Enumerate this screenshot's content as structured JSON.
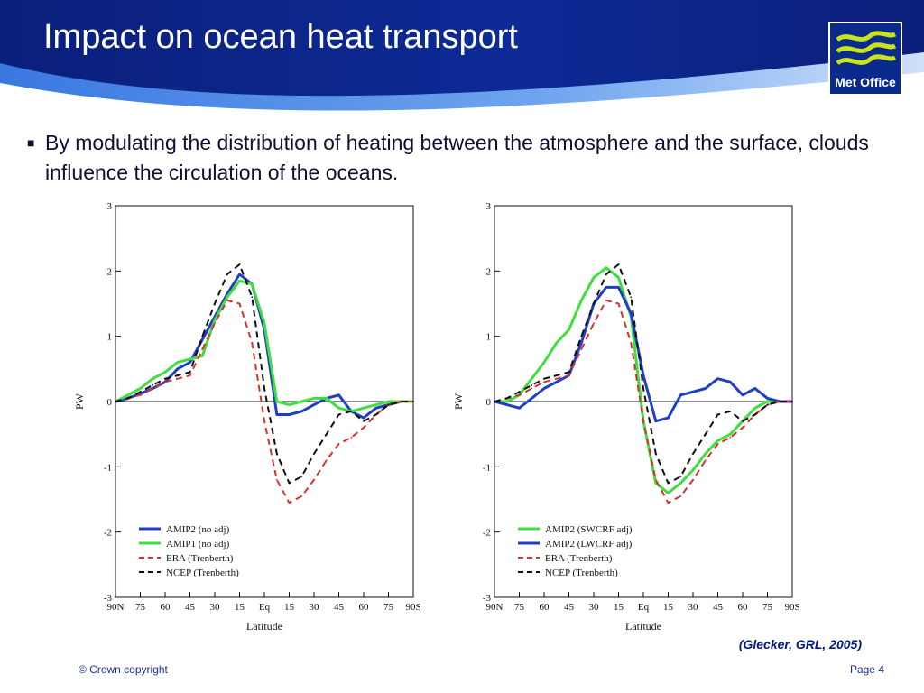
{
  "slide": {
    "title": "Impact on ocean heat transport",
    "bullet": "By modulating the distribution of heating between the atmosphere and the surface, clouds influence the circulation of the oceans.",
    "citation": "(Glecker, GRL, 2005)",
    "footer_left": "© Crown copyright",
    "footer_right": "Page 4",
    "logo_text": "Met Office",
    "colors": {
      "header_dark": "#0a1f7a",
      "header_light": "#2d6fd6",
      "text": "#0d1030",
      "footer": "#1b2f9a"
    },
    "icons": [
      "bullet-square-icon",
      "met-office-waves-icon"
    ]
  },
  "chart_data": [
    {
      "type": "line",
      "xlabel": "Latitude",
      "ylabel": "PW",
      "ylim": [
        -3,
        3
      ],
      "yticks": [
        "3",
        "2",
        "1",
        "0",
        "-1",
        "-2",
        "-3"
      ],
      "xticks": [
        "90N",
        "75",
        "60",
        "45",
        "30",
        "15",
        "Eq",
        "15",
        "30",
        "45",
        "60",
        "75",
        "90S"
      ],
      "x": [
        90,
        82.5,
        75,
        67.5,
        60,
        52.5,
        45,
        37.5,
        30,
        22.5,
        15,
        7.5,
        0,
        -7.5,
        -15,
        -22.5,
        -30,
        -37.5,
        -45,
        -52.5,
        -60,
        -67.5,
        -75,
        -82.5,
        -90
      ],
      "legend_position": "bottom-left",
      "series": [
        {
          "name": "AMIP2 (no adj)",
          "color": "#1f3fc4",
          "style": "solid",
          "values": [
            0,
            0.05,
            0.12,
            0.2,
            0.3,
            0.5,
            0.6,
            0.95,
            1.3,
            1.65,
            1.95,
            1.8,
            1.1,
            -0.2,
            -0.2,
            -0.15,
            -0.05,
            0.05,
            0.1,
            -0.15,
            -0.25,
            -0.1,
            -0.05,
            0,
            0
          ]
        },
        {
          "name": "AMIP1 (no adj)",
          "color": "#3fdf3f",
          "style": "solid",
          "values": [
            0,
            0.1,
            0.2,
            0.35,
            0.45,
            0.6,
            0.65,
            0.7,
            1.25,
            1.6,
            1.85,
            1.8,
            1.2,
            0,
            -0.05,
            0,
            0.05,
            0.05,
            -0.1,
            -0.15,
            -0.1,
            -0.05,
            0,
            0,
            0
          ]
        },
        {
          "name": "ERA (Trenberth)",
          "color": "#d83030",
          "style": "dashed",
          "values": [
            0,
            0.05,
            0.1,
            0.2,
            0.3,
            0.35,
            0.4,
            0.8,
            1.2,
            1.55,
            1.5,
            0.9,
            -0.3,
            -1.2,
            -1.55,
            -1.45,
            -1.2,
            -0.9,
            -0.65,
            -0.55,
            -0.4,
            -0.2,
            -0.05,
            0,
            0
          ]
        },
        {
          "name": "NCEP (Trenberth)",
          "color": "#111111",
          "style": "dashed",
          "values": [
            0,
            0.05,
            0.15,
            0.25,
            0.35,
            0.4,
            0.45,
            1.0,
            1.5,
            1.95,
            2.1,
            1.6,
            0.2,
            -0.8,
            -1.25,
            -1.15,
            -0.8,
            -0.5,
            -0.2,
            -0.15,
            -0.3,
            -0.2,
            -0.05,
            0,
            0
          ]
        }
      ]
    },
    {
      "type": "line",
      "xlabel": "Latitude",
      "ylabel": "PW",
      "ylim": [
        -3,
        3
      ],
      "yticks": [
        "3",
        "2",
        "1",
        "0",
        "-1",
        "-2",
        "-3"
      ],
      "xticks": [
        "90N",
        "75",
        "60",
        "45",
        "30",
        "15",
        "Eq",
        "15",
        "30",
        "45",
        "60",
        "75",
        "90S"
      ],
      "x": [
        90,
        82.5,
        75,
        67.5,
        60,
        52.5,
        45,
        37.5,
        30,
        22.5,
        15,
        7.5,
        0,
        -7.5,
        -15,
        -22.5,
        -30,
        -37.5,
        -45,
        -52.5,
        -60,
        -67.5,
        -75,
        -82.5,
        -90
      ],
      "legend_position": "bottom-left",
      "series": [
        {
          "name": "AMIP2 (SWCRF adj)",
          "color": "#3fdf3f",
          "style": "solid",
          "values": [
            0,
            0,
            0.1,
            0.35,
            0.6,
            0.9,
            1.1,
            1.55,
            1.9,
            2.05,
            1.9,
            1.3,
            -0.3,
            -1.25,
            -1.4,
            -1.25,
            -1.05,
            -0.8,
            -0.6,
            -0.5,
            -0.3,
            -0.1,
            0,
            0,
            0
          ]
        },
        {
          "name": "AMIP2 (LWCRF adj)",
          "color": "#1f3fc4",
          "style": "solid",
          "values": [
            0,
            -0.05,
            -0.1,
            0.05,
            0.2,
            0.3,
            0.4,
            0.9,
            1.5,
            1.75,
            1.75,
            1.35,
            0.4,
            -0.3,
            -0.25,
            0.1,
            0.15,
            0.2,
            0.35,
            0.3,
            0.1,
            0.2,
            0.05,
            0,
            0
          ]
        },
        {
          "name": "ERA (Trenberth)",
          "color": "#d83030",
          "style": "dashed",
          "values": [
            0,
            0.05,
            0.1,
            0.2,
            0.3,
            0.35,
            0.4,
            0.8,
            1.2,
            1.55,
            1.5,
            0.9,
            -0.3,
            -1.2,
            -1.55,
            -1.45,
            -1.2,
            -0.9,
            -0.65,
            -0.55,
            -0.4,
            -0.2,
            -0.05,
            0,
            0
          ]
        },
        {
          "name": "NCEP (Trenberth)",
          "color": "#111111",
          "style": "dashed",
          "values": [
            0,
            0.05,
            0.15,
            0.25,
            0.35,
            0.4,
            0.45,
            1.0,
            1.5,
            1.95,
            2.1,
            1.6,
            0.2,
            -0.8,
            -1.25,
            -1.15,
            -0.8,
            -0.5,
            -0.2,
            -0.15,
            -0.3,
            -0.2,
            -0.05,
            0,
            0
          ]
        }
      ]
    }
  ]
}
